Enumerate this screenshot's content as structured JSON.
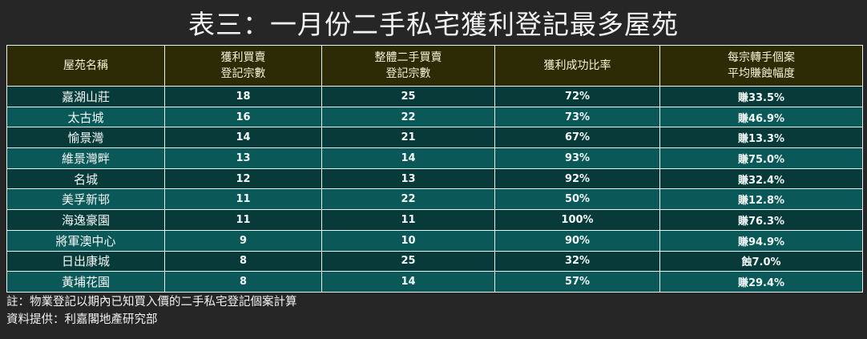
{
  "title": "表三：一月份二手私宅獲利登記最多屋苑",
  "table": {
    "headers": [
      {
        "line1": "屋苑名稱",
        "line2": ""
      },
      {
        "line1": "獲利買賣",
        "line2": "登記宗數"
      },
      {
        "line1": "整體二手買賣",
        "line2": "登記宗數"
      },
      {
        "line1": "獲利成功比率",
        "line2": ""
      },
      {
        "line1": "每宗轉手個案",
        "line2": "平均賺蝕幅度"
      }
    ],
    "rows": [
      {
        "estate": "嘉湖山莊",
        "profit_count": "18",
        "total_count": "25",
        "success_rate": "72%",
        "avg_change": "賺33.5%"
      },
      {
        "estate": "太古城",
        "profit_count": "16",
        "total_count": "22",
        "success_rate": "73%",
        "avg_change": "賺46.9%"
      },
      {
        "estate": "愉景灣",
        "profit_count": "14",
        "total_count": "21",
        "success_rate": "67%",
        "avg_change": "賺13.3%"
      },
      {
        "estate": "維景灣畔",
        "profit_count": "13",
        "total_count": "14",
        "success_rate": "93%",
        "avg_change": "賺75.0%"
      },
      {
        "estate": "名城",
        "profit_count": "12",
        "total_count": "13",
        "success_rate": "92%",
        "avg_change": "賺32.4%"
      },
      {
        "estate": "美孚新邨",
        "profit_count": "11",
        "total_count": "22",
        "success_rate": "50%",
        "avg_change": "賺12.8%"
      },
      {
        "estate": "海逸豪園",
        "profit_count": "11",
        "total_count": "11",
        "success_rate": "100%",
        "avg_change": "賺76.3%"
      },
      {
        "estate": "將軍澳中心",
        "profit_count": "9",
        "total_count": "10",
        "success_rate": "90%",
        "avg_change": "賺94.9%"
      },
      {
        "estate": "日出康城",
        "profit_count": "8",
        "total_count": "25",
        "success_rate": "32%",
        "avg_change": "蝕7.0%"
      },
      {
        "estate": "黃埔花園",
        "profit_count": "8",
        "total_count": "14",
        "success_rate": "57%",
        "avg_change": "賺29.4%"
      }
    ]
  },
  "notes": {
    "note": "註：物業登記以期內已知買入價的二手私宅登記個案計算",
    "source": "資料提供：利嘉閣地產研究部"
  },
  "colors": {
    "background": "#262626",
    "header_bg": "#2d2b05",
    "row_dark": "#073a39",
    "row_light": "#0a5857",
    "grid": "#e8f4f2"
  }
}
